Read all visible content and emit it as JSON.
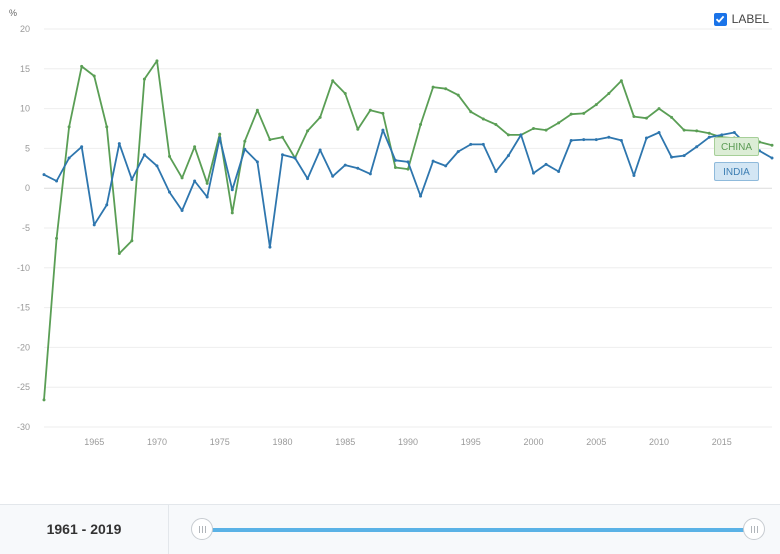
{
  "chart_data": {
    "type": "line",
    "title": "",
    "unit": "%",
    "xlabel": "",
    "ylabel": "",
    "xlim": [
      1961,
      2019
    ],
    "ylim": [
      -30,
      20
    ],
    "y_ticks": [
      20,
      15,
      10,
      5,
      0,
      -5,
      -10,
      -15,
      -20,
      -25,
      -30
    ],
    "x_ticks": [
      1965,
      1970,
      1975,
      1980,
      1985,
      1990,
      1995,
      2000,
      2005,
      2010,
      2015
    ],
    "grid": true,
    "series": [
      {
        "name": "CHINA",
        "color": "#5a9e55",
        "x": [
          1961,
          1962,
          1963,
          1964,
          1965,
          1966,
          1967,
          1968,
          1969,
          1970,
          1971,
          1972,
          1973,
          1974,
          1975,
          1976,
          1977,
          1978,
          1979,
          1980,
          1981,
          1982,
          1983,
          1984,
          1985,
          1986,
          1987,
          1988,
          1989,
          1990,
          1991,
          1992,
          1993,
          1994,
          1995,
          1996,
          1997,
          1998,
          1999,
          2000,
          2001,
          2002,
          2003,
          2004,
          2005,
          2006,
          2007,
          2008,
          2009,
          2010,
          2011,
          2012,
          2013,
          2014,
          2015,
          2016,
          2017,
          2018,
          2019
        ],
        "values": [
          -26.6,
          -6.3,
          7.7,
          15.3,
          14.1,
          7.7,
          -8.2,
          -6.6,
          13.7,
          16.0,
          4.0,
          1.3,
          5.2,
          0.6,
          6.8,
          -3.1,
          5.9,
          9.8,
          6.1,
          6.4,
          3.8,
          7.2,
          8.9,
          13.5,
          11.9,
          7.4,
          9.8,
          9.4,
          2.6,
          2.4,
          8.0,
          12.7,
          12.5,
          11.7,
          9.6,
          8.7,
          8.0,
          6.7,
          6.7,
          7.5,
          7.3,
          8.2,
          9.3,
          9.4,
          10.5,
          11.9,
          13.5,
          9.0,
          8.8,
          10.0,
          8.9,
          7.3,
          7.2,
          6.9,
          6.4,
          6.3,
          6.0,
          5.8,
          5.4
        ]
      },
      {
        "name": "INDIA",
        "color": "#2e76ae",
        "x": [
          1961,
          1962,
          1963,
          1964,
          1965,
          1966,
          1967,
          1968,
          1969,
          1970,
          1971,
          1972,
          1973,
          1974,
          1975,
          1976,
          1977,
          1978,
          1979,
          1980,
          1981,
          1982,
          1983,
          1984,
          1985,
          1986,
          1987,
          1988,
          1989,
          1990,
          1991,
          1992,
          1993,
          1994,
          1995,
          1996,
          1997,
          1998,
          1999,
          2000,
          2001,
          2002,
          2003,
          2004,
          2005,
          2006,
          2007,
          2008,
          2009,
          2010,
          2011,
          2012,
          2013,
          2014,
          2015,
          2016,
          2017,
          2018,
          2019
        ],
        "values": [
          1.7,
          0.9,
          3.8,
          5.2,
          -4.6,
          -2.1,
          5.6,
          1.1,
          4.2,
          2.8,
          -0.5,
          -2.8,
          0.9,
          -1.1,
          6.3,
          -0.2,
          4.9,
          3.3,
          -7.4,
          4.2,
          3.8,
          1.2,
          4.8,
          1.5,
          2.9,
          2.5,
          1.8,
          7.3,
          3.5,
          3.3,
          -1.0,
          3.4,
          2.8,
          4.6,
          5.5,
          5.5,
          2.1,
          4.1,
          6.7,
          1.9,
          3.0,
          2.1,
          6.0,
          6.1,
          6.1,
          6.4,
          6.0,
          1.6,
          6.3,
          7.0,
          3.9,
          4.1,
          5.2,
          6.4,
          6.7,
          7.0,
          5.4,
          4.7,
          3.8
        ]
      }
    ]
  },
  "controls": {
    "label_toggle": "LABEL",
    "label_checked": true
  },
  "range": {
    "start": "1961",
    "separator": " - ",
    "end": "2019"
  },
  "colors": {
    "accent": "#1a73e8",
    "slider": "#5ab2e6"
  }
}
